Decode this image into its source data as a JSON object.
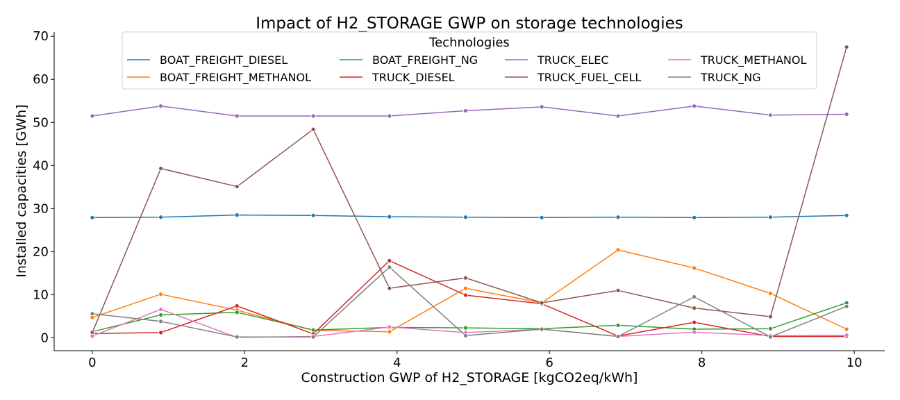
{
  "chart_data": {
    "type": "line",
    "title": "Impact of H2_STORAGE GWP on storage technologies",
    "xlabel": "Construction GWP of H2_STORAGE [kgCO2eq/kWh]",
    "ylabel": "Installed capacities [GWh]",
    "xlim": [
      -0.5,
      10.4
    ],
    "ylim": [
      -3.0,
      71.0
    ],
    "xticks": [
      0,
      2,
      4,
      6,
      8,
      10
    ],
    "yticks": [
      0,
      10,
      20,
      30,
      40,
      50,
      60,
      70
    ],
    "grid": false,
    "legend": {
      "title": "Technologies",
      "position": "top-center",
      "columns": 4
    },
    "x": [
      0,
      0.9,
      1.9,
      2.9,
      3.9,
      4.9,
      5.9,
      6.9,
      7.9,
      8.9,
      9.9
    ],
    "series": [
      {
        "name": "BOAT_FREIGHT_DIESEL",
        "color": "#1f77b4",
        "values": [
          27.9,
          28.0,
          28.5,
          28.4,
          28.1,
          28.0,
          27.9,
          28.0,
          27.9,
          28.0,
          28.4
        ]
      },
      {
        "name": "BOAT_FREIGHT_METHANOL",
        "color": "#ff7f0e",
        "values": [
          4.7,
          10.1,
          6.4,
          1.7,
          1.4,
          11.5,
          8.1,
          20.4,
          16.2,
          10.3,
          2.0
        ]
      },
      {
        "name": "BOAT_FREIGHT_NG",
        "color": "#2ca02c",
        "values": [
          1.4,
          5.3,
          5.9,
          1.8,
          2.4,
          2.3,
          2.1,
          2.9,
          2.0,
          2.1,
          8.1
        ]
      },
      {
        "name": "TRUCK_DIESEL",
        "color": "#d62728",
        "values": [
          1.0,
          1.2,
          7.4,
          0.9,
          17.9,
          9.9,
          7.9,
          0.4,
          3.6,
          0.3,
          0.3
        ]
      },
      {
        "name": "TRUCK_ELEC",
        "color": "#9467bd",
        "values": [
          51.5,
          53.8,
          51.5,
          51.5,
          51.5,
          52.7,
          53.6,
          51.5,
          53.8,
          51.7,
          51.9
        ]
      },
      {
        "name": "TRUCK_FUEL_CELL",
        "color": "#8c564b",
        "values": [
          1.2,
          39.3,
          35.1,
          48.4,
          11.5,
          13.9,
          8.1,
          11.0,
          6.9,
          4.9,
          67.5
        ]
      },
      {
        "name": "TRUCK_METHANOL",
        "color": "#e377c2",
        "values": [
          0.4,
          6.6,
          0.1,
          0.3,
          2.5,
          1.2,
          2.0,
          0.3,
          1.3,
          0.5,
          0.6
        ]
      },
      {
        "name": "TRUCK_NG",
        "color": "#7f7f7f",
        "values": [
          5.6,
          3.8,
          0.2,
          0.2,
          16.4,
          0.5,
          2.0,
          0.3,
          9.5,
          0.2,
          7.3
        ]
      }
    ]
  }
}
